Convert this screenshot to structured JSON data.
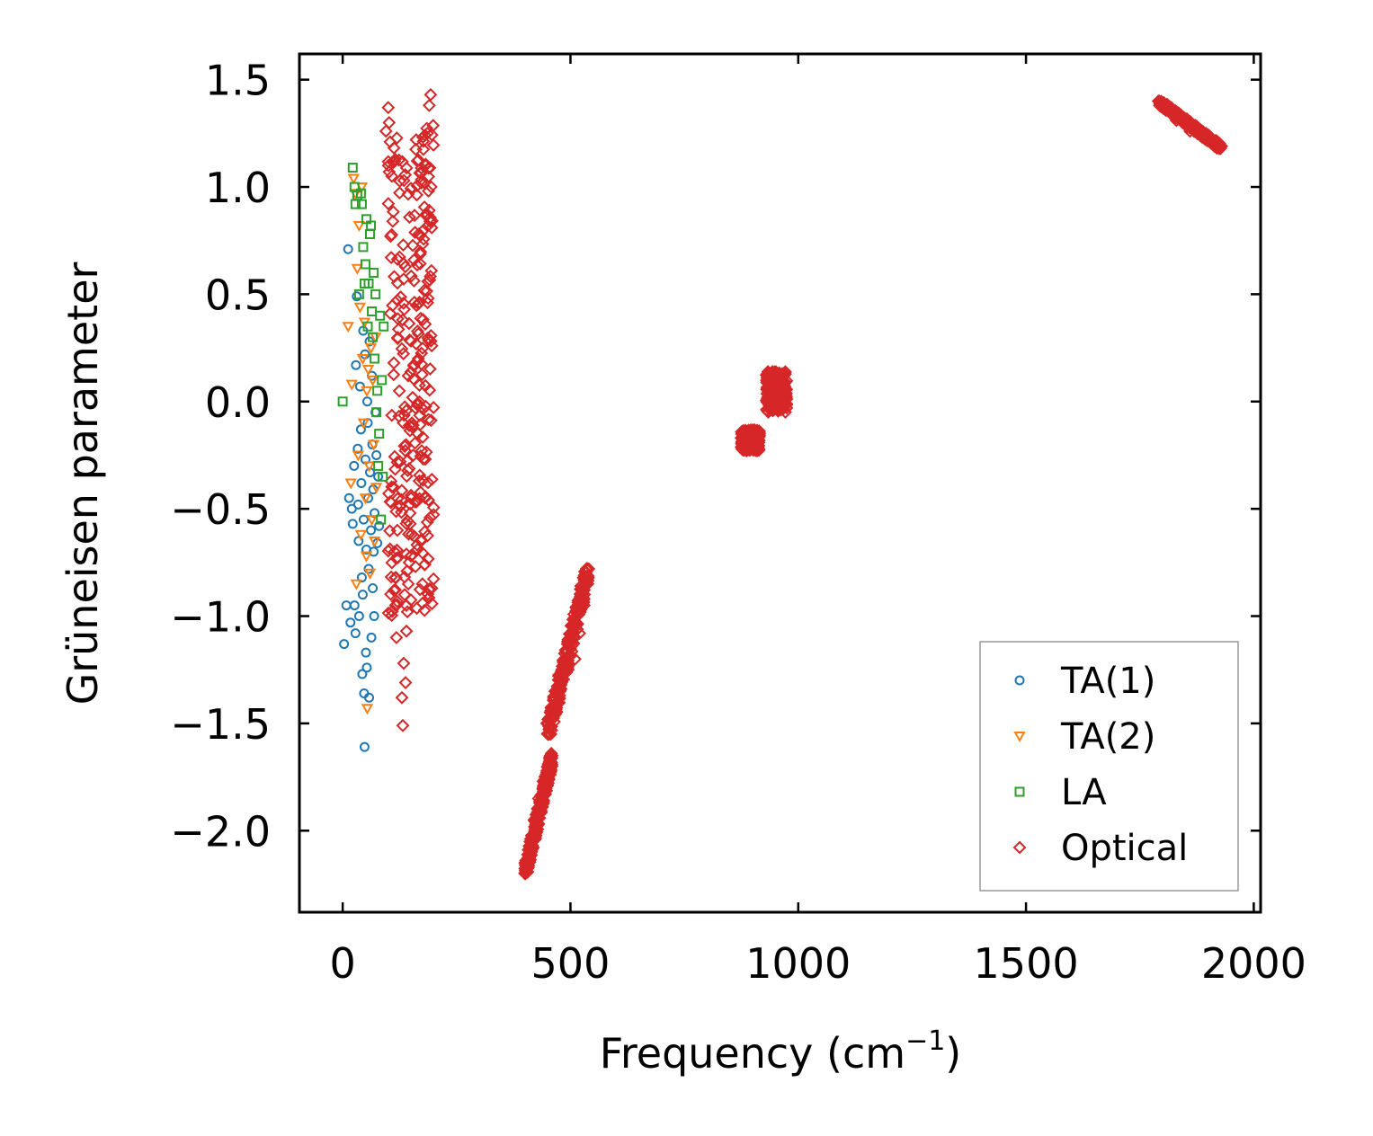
{
  "chart_data": {
    "type": "scatter",
    "xlabel": "Frequency (cm",
    "xlabel_sup": "−1",
    "xlabel_close": ")",
    "ylabel": "Grüneisen parameter",
    "xlim": [
      -95,
      2015
    ],
    "ylim": [
      -2.38,
      1.62
    ],
    "xticks": [
      0,
      500,
      1000,
      1500,
      2000
    ],
    "xtick_labels": [
      "0",
      "500",
      "1000",
      "1500",
      "2000"
    ],
    "yticks": [
      1.5,
      1.0,
      0.5,
      0.0,
      -0.5,
      -1.0,
      -1.5,
      -2.0
    ],
    "ytick_labels": [
      "1.5",
      "1.0",
      "0.5",
      "0.0",
      "−0.5",
      "−1.0",
      "−1.5",
      "−2.0"
    ],
    "grid": false,
    "legend_position": "bottom-right",
    "series": [
      {
        "name": "TA(1)",
        "marker": "circle",
        "color": "#1f77b4",
        "points": [
          [
            3,
            -1.13
          ],
          [
            8,
            -0.95
          ],
          [
            12,
            0.71
          ],
          [
            14,
            -0.45
          ],
          [
            17,
            -1.03
          ],
          [
            20,
            -0.5
          ],
          [
            22,
            -0.57
          ],
          [
            25,
            -0.3
          ],
          [
            26,
            -0.95
          ],
          [
            28,
            -1.08
          ],
          [
            29,
            0.17
          ],
          [
            31,
            0.49
          ],
          [
            33,
            -0.22
          ],
          [
            34,
            -0.48
          ],
          [
            35,
            -0.65
          ],
          [
            36,
            -1.0
          ],
          [
            38,
            0.07
          ],
          [
            40,
            -0.13
          ],
          [
            41,
            -0.38
          ],
          [
            42,
            -0.82
          ],
          [
            43,
            -1.27
          ],
          [
            44,
            -0.9
          ],
          [
            45,
            0.33
          ],
          [
            46,
            -0.55
          ],
          [
            47,
            -1.36
          ],
          [
            48,
            -1.61
          ],
          [
            49,
            0.22
          ],
          [
            50,
            -0.27
          ],
          [
            51,
            -1.17
          ],
          [
            52,
            -0.69
          ],
          [
            53,
            -1.24
          ],
          [
            54,
            0.0
          ],
          [
            55,
            -0.1
          ],
          [
            56,
            -0.45
          ],
          [
            57,
            -0.78
          ],
          [
            58,
            -1.38
          ],
          [
            59,
            0.28
          ],
          [
            60,
            -0.33
          ],
          [
            62,
            -0.6
          ],
          [
            63,
            -1.1
          ],
          [
            64,
            0.12
          ],
          [
            65,
            -0.2
          ],
          [
            66,
            -0.87
          ],
          [
            67,
            -0.41
          ],
          [
            68,
            -0.7
          ],
          [
            69,
            -1.0
          ],
          [
            70,
            -0.52
          ],
          [
            72,
            -0.05
          ],
          [
            74,
            -0.25
          ],
          [
            76,
            -0.66
          ],
          [
            78,
            -0.35
          ],
          [
            80,
            -0.58
          ]
        ]
      },
      {
        "name": "TA(2)",
        "marker": "triangle-down",
        "color": "#ff7f0e",
        "points": [
          [
            12,
            0.35
          ],
          [
            18,
            -0.38
          ],
          [
            20,
            0.08
          ],
          [
            24,
            1.04
          ],
          [
            28,
            0.97
          ],
          [
            30,
            -0.85
          ],
          [
            32,
            0.62
          ],
          [
            34,
            -0.25
          ],
          [
            36,
            0.82
          ],
          [
            38,
            0.44
          ],
          [
            40,
            -0.62
          ],
          [
            42,
            1.0
          ],
          [
            44,
            0.2
          ],
          [
            46,
            -0.1
          ],
          [
            48,
            0.37
          ],
          [
            50,
            -0.45
          ],
          [
            52,
            -0.72
          ],
          [
            53,
            0.05
          ],
          [
            54,
            -1.43
          ],
          [
            56,
            0.15
          ],
          [
            58,
            -0.3
          ],
          [
            60,
            -0.8
          ],
          [
            62,
            0.25
          ],
          [
            64,
            -0.55
          ],
          [
            66,
            0.1
          ],
          [
            68,
            -0.2
          ],
          [
            70,
            -0.65
          ],
          [
            72,
            0.3
          ],
          [
            74,
            -0.4
          ]
        ]
      },
      {
        "name": "LA",
        "marker": "square",
        "color": "#2ca02c",
        "points": [
          [
            0,
            0.0
          ],
          [
            22,
            1.09
          ],
          [
            26,
            1.0
          ],
          [
            28,
            0.92
          ],
          [
            32,
            0.96
          ],
          [
            36,
            0.5
          ],
          [
            40,
            0.97
          ],
          [
            42,
            0.92
          ],
          [
            45,
            0.72
          ],
          [
            48,
            0.55
          ],
          [
            50,
            0.64
          ],
          [
            52,
            0.85
          ],
          [
            55,
            0.35
          ],
          [
            57,
            0.55
          ],
          [
            60,
            0.78
          ],
          [
            62,
            0.82
          ],
          [
            64,
            0.42
          ],
          [
            66,
            0.3
          ],
          [
            68,
            0.6
          ],
          [
            70,
            0.2
          ],
          [
            72,
            0.5
          ],
          [
            74,
            -0.05
          ],
          [
            76,
            0.05
          ],
          [
            78,
            -0.3
          ],
          [
            80,
            -0.15
          ],
          [
            82,
            0.4
          ],
          [
            84,
            -0.55
          ],
          [
            86,
            0.1
          ],
          [
            88,
            -0.35
          ],
          [
            90,
            0.35
          ]
        ]
      },
      {
        "name": "Optical",
        "marker": "diamond",
        "color": "#d62728",
        "points": [
          [
            95,
            1.26
          ],
          [
            100,
            1.37
          ],
          [
            102,
            1.3
          ],
          [
            104,
            1.21
          ],
          [
            108,
            1.05
          ],
          [
            110,
            0.84
          ],
          [
            112,
            -0.4
          ],
          [
            114,
            -0.7
          ],
          [
            116,
            -0.95
          ],
          [
            118,
            -1.1
          ],
          [
            120,
            -0.6
          ],
          [
            126,
            -0.28
          ],
          [
            130,
            -1.38
          ],
          [
            132,
            -1.51
          ],
          [
            134,
            -1.22
          ],
          [
            136,
            -0.9
          ],
          [
            138,
            -1.31
          ],
          [
            140,
            -1.07
          ],
          [
            142,
            -0.98
          ],
          [
            144,
            -0.85
          ],
          [
            146,
            -0.75
          ],
          [
            148,
            -0.52
          ],
          [
            150,
            -0.45
          ],
          [
            152,
            -0.1
          ],
          [
            155,
            -0.25
          ],
          [
            160,
            -0.03
          ],
          [
            165,
            -0.15
          ],
          [
            168,
            -0.37
          ],
          [
            172,
            -0.65
          ],
          [
            175,
            -0.85
          ],
          [
            178,
            0.8
          ],
          [
            182,
            1.1
          ],
          [
            186,
            1.25
          ],
          [
            190,
            1.38
          ],
          [
            193,
            1.43
          ],
          [
            400,
            -2.15
          ],
          [
            410,
            -2.07
          ],
          [
            420,
            -1.95
          ],
          [
            430,
            -1.85
          ],
          [
            440,
            -1.77
          ],
          [
            450,
            -1.7
          ],
          [
            458,
            -1.64
          ],
          [
            448,
            -1.5
          ],
          [
            465,
            -1.38
          ],
          [
            480,
            -1.3
          ],
          [
            495,
            -1.25
          ],
          [
            510,
            -1.2
          ],
          [
            520,
            -1.08
          ],
          [
            530,
            -0.95
          ],
          [
            538,
            -0.82
          ],
          [
            885,
            -0.18
          ],
          [
            900,
            -0.2
          ],
          [
            915,
            -0.15
          ],
          [
            940,
            0.03
          ],
          [
            955,
            0.1
          ],
          [
            965,
            0.13
          ],
          [
            1800,
            1.38
          ],
          [
            1830,
            1.31
          ],
          [
            1860,
            1.26
          ],
          [
            1890,
            1.23
          ],
          [
            1920,
            1.19
          ]
        ],
        "bands": [
          {
            "x": [
              100,
              200
            ],
            "y": [
              -1.0,
              1.3
            ]
          },
          {
            "x": [
              400,
              460
            ],
            "y": [
              -2.2,
              -1.65
            ]
          },
          {
            "x": [
              450,
              540
            ],
            "y": [
              -1.55,
              -0.78
            ]
          },
          {
            "x": [
              875,
              915
            ],
            "y": [
              -0.23,
              -0.13
            ]
          },
          {
            "x": [
              930,
              975
            ],
            "y": [
              -0.05,
              0.14
            ]
          },
          {
            "x": [
              1790,
              1930
            ],
            "y": [
              1.18,
              1.4
            ]
          }
        ]
      }
    ]
  }
}
